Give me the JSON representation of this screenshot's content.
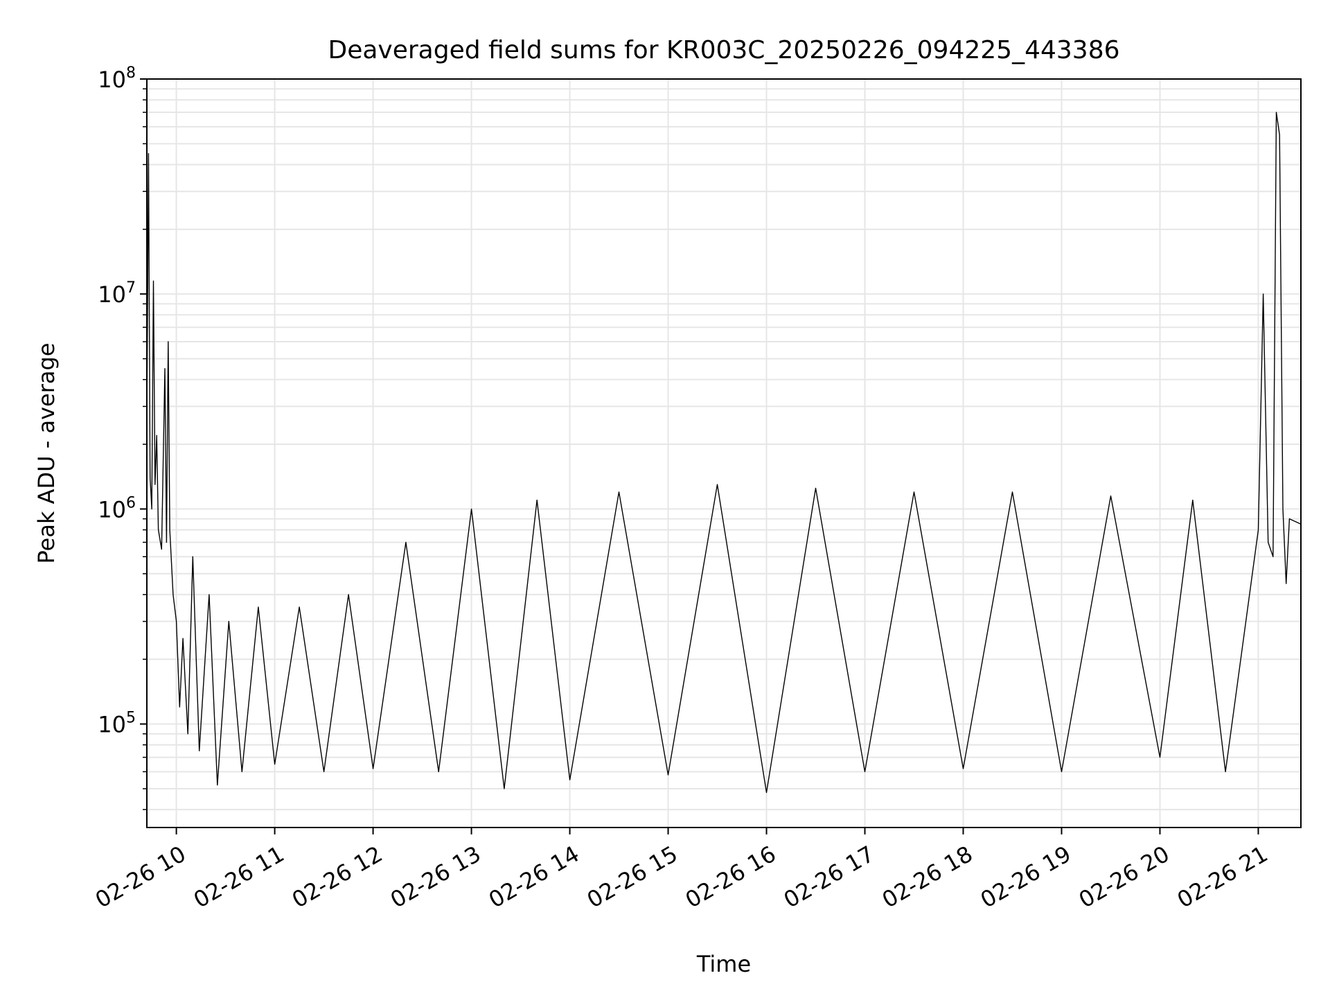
{
  "chart_data": {
    "type": "line",
    "title": "Deaveraged field sums for KR003C_20250226_094225_443386",
    "xlabel": "Time",
    "ylabel": "Peak ADU - average",
    "yscale": "log",
    "ylim": [
      33000,
      100000000
    ],
    "xlim": [
      "2025-02-26 09:42",
      "2025-02-26 21:26"
    ],
    "x_ticks": [
      {
        "time": "2025-02-26 10:00",
        "label": "02-26 10"
      },
      {
        "time": "2025-02-26 11:00",
        "label": "02-26 11"
      },
      {
        "time": "2025-02-26 12:00",
        "label": "02-26 12"
      },
      {
        "time": "2025-02-26 13:00",
        "label": "02-26 13"
      },
      {
        "time": "2025-02-26 14:00",
        "label": "02-26 14"
      },
      {
        "time": "2025-02-26 15:00",
        "label": "02-26 15"
      },
      {
        "time": "2025-02-26 16:00",
        "label": "02-26 16"
      },
      {
        "time": "2025-02-26 17:00",
        "label": "02-26 17"
      },
      {
        "time": "2025-02-26 18:00",
        "label": "02-26 18"
      },
      {
        "time": "2025-02-26 19:00",
        "label": "02-26 19"
      },
      {
        "time": "2025-02-26 20:00",
        "label": "02-26 20"
      },
      {
        "time": "2025-02-26 21:00",
        "label": "02-26 21"
      }
    ],
    "y_ticks": [
      {
        "value": 100000,
        "base": "10",
        "exp": "5"
      },
      {
        "value": 1000000,
        "base": "10",
        "exp": "6"
      },
      {
        "value": 10000000,
        "base": "10",
        "exp": "7"
      },
      {
        "value": 100000000,
        "base": "10",
        "exp": "8"
      }
    ],
    "grid": true,
    "line_color": "#000000",
    "grid_color": "#e6e6e6",
    "series": [
      {
        "values": [
          [
            "2025-02-26 09:42",
            2600000
          ],
          [
            "2025-02-26 09:43",
            45000000
          ],
          [
            "2025-02-26 09:44",
            1400000
          ],
          [
            "2025-02-26 09:45",
            1000000
          ],
          [
            "2025-02-26 09:46",
            11500000
          ],
          [
            "2025-02-26 09:47",
            1300000
          ],
          [
            "2025-02-26 09:48",
            2200000
          ],
          [
            "2025-02-26 09:49",
            800000
          ],
          [
            "2025-02-26 09:51",
            650000
          ],
          [
            "2025-02-26 09:53",
            4500000
          ],
          [
            "2025-02-26 09:54",
            700000
          ],
          [
            "2025-02-26 09:55",
            6000000
          ],
          [
            "2025-02-26 09:56",
            800000
          ],
          [
            "2025-02-26 09:58",
            400000
          ],
          [
            "2025-02-26 10:00",
            300000
          ],
          [
            "2025-02-26 10:02",
            120000
          ],
          [
            "2025-02-26 10:04",
            250000
          ],
          [
            "2025-02-26 10:07",
            90000
          ],
          [
            "2025-02-26 10:10",
            600000
          ],
          [
            "2025-02-26 10:14",
            75000
          ],
          [
            "2025-02-26 10:20",
            400000
          ],
          [
            "2025-02-26 10:25",
            52000
          ],
          [
            "2025-02-26 10:32",
            300000
          ],
          [
            "2025-02-26 10:40",
            60000
          ],
          [
            "2025-02-26 10:50",
            350000
          ],
          [
            "2025-02-26 11:00",
            65000
          ],
          [
            "2025-02-26 11:15",
            350000
          ],
          [
            "2025-02-26 11:30",
            60000
          ],
          [
            "2025-02-26 11:45",
            400000
          ],
          [
            "2025-02-26 12:00",
            62000
          ],
          [
            "2025-02-26 12:20",
            700000
          ],
          [
            "2025-02-26 12:40",
            60000
          ],
          [
            "2025-02-26 13:00",
            1000000
          ],
          [
            "2025-02-26 13:20",
            50000
          ],
          [
            "2025-02-26 13:40",
            1100000
          ],
          [
            "2025-02-26 14:00",
            55000
          ],
          [
            "2025-02-26 14:30",
            1200000
          ],
          [
            "2025-02-26 15:00",
            58000
          ],
          [
            "2025-02-26 15:30",
            1300000
          ],
          [
            "2025-02-26 16:00",
            48000
          ],
          [
            "2025-02-26 16:30",
            1250000
          ],
          [
            "2025-02-26 17:00",
            60000
          ],
          [
            "2025-02-26 17:30",
            1200000
          ],
          [
            "2025-02-26 18:00",
            62000
          ],
          [
            "2025-02-26 18:30",
            1200000
          ],
          [
            "2025-02-26 19:00",
            60000
          ],
          [
            "2025-02-26 19:30",
            1150000
          ],
          [
            "2025-02-26 20:00",
            70000
          ],
          [
            "2025-02-26 20:20",
            1100000
          ],
          [
            "2025-02-26 20:40",
            60000
          ],
          [
            "2025-02-26 21:00",
            800000
          ],
          [
            "2025-02-26 21:03",
            10000000
          ],
          [
            "2025-02-26 21:06",
            700000
          ],
          [
            "2025-02-26 21:09",
            600000
          ],
          [
            "2025-02-26 21:11",
            70000000
          ],
          [
            "2025-02-26 21:13",
            55000000
          ],
          [
            "2025-02-26 21:15",
            1000000
          ],
          [
            "2025-02-26 21:17",
            450000
          ],
          [
            "2025-02-26 21:19",
            900000
          ],
          [
            "2025-02-26 21:26",
            850000
          ]
        ]
      }
    ]
  }
}
